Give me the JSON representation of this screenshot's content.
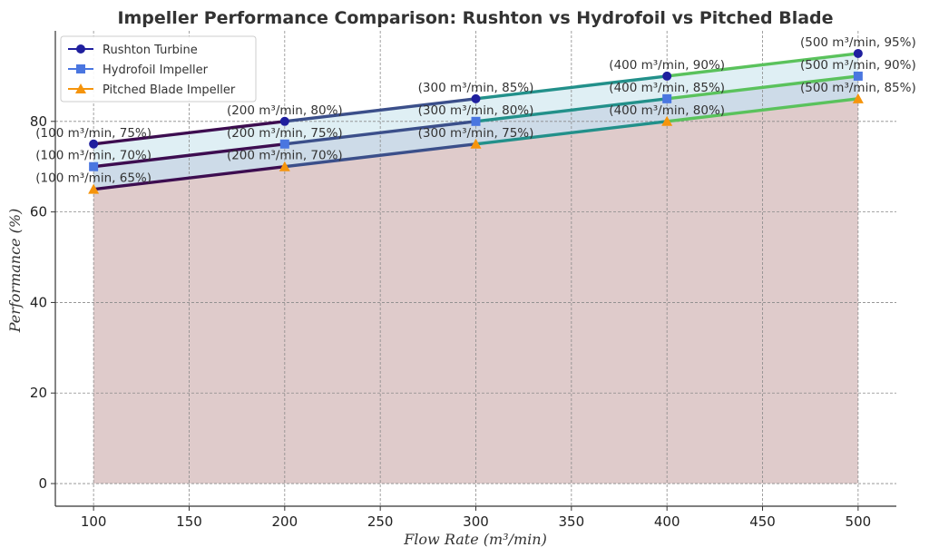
{
  "chart_data": {
    "type": "line",
    "title": "Impeller Performance Comparison: Rushton vs Hydrofoil vs Pitched Blade",
    "xlabel": "Flow Rate (m³/min)",
    "ylabel": "Performance (%)",
    "x": [
      100,
      200,
      300,
      400,
      500
    ],
    "xlim": [
      80,
      520
    ],
    "ylim": [
      -5,
      100
    ],
    "xticks": [
      "100",
      "150",
      "200",
      "250",
      "300",
      "350",
      "400",
      "450",
      "500"
    ],
    "yticks": [
      "0",
      "20",
      "40",
      "60",
      "80"
    ],
    "grid": true,
    "legend_position": "top-left",
    "series": [
      {
        "name": "Rushton Turbine",
        "marker": "circle",
        "marker_color": "#1f1f9e",
        "values": [
          75,
          80,
          85,
          90,
          95
        ],
        "labels": [
          "(100 m³/min, 75%)",
          "(200 m³/min, 80%)",
          "(300 m³/min, 85%)",
          "(400 m³/min, 90%)",
          "(500 m³/min, 95%)"
        ]
      },
      {
        "name": "Hydrofoil Impeller",
        "marker": "square",
        "marker_color": "#4a76e0",
        "values": [
          70,
          75,
          80,
          85,
          90
        ],
        "labels": [
          "(100 m³/min, 70%)",
          "(200 m³/min, 75%)",
          "(300 m³/min, 80%)",
          "(400 m³/min, 85%)",
          "(500 m³/min, 90%)"
        ]
      },
      {
        "name": "Pitched Blade Impeller",
        "marker": "triangle",
        "marker_color": "#f5940c",
        "values": [
          65,
          70,
          75,
          80,
          85
        ],
        "labels": [
          "(100 m³/min, 65%)",
          "(200 m³/min, 70%)",
          "(300 m³/min, 75%)",
          "(400 m³/min, 80%)",
          "(500 m³/min, 85%)"
        ]
      }
    ],
    "segment_colors": [
      "#3d0d50",
      "#3b4f8a",
      "#22908a",
      "#5ac25c"
    ],
    "fill_colors": {
      "between_top": "#dfeff4",
      "between_mid": "#cddbe8",
      "under_bottom": "#dfcbcb"
    }
  }
}
